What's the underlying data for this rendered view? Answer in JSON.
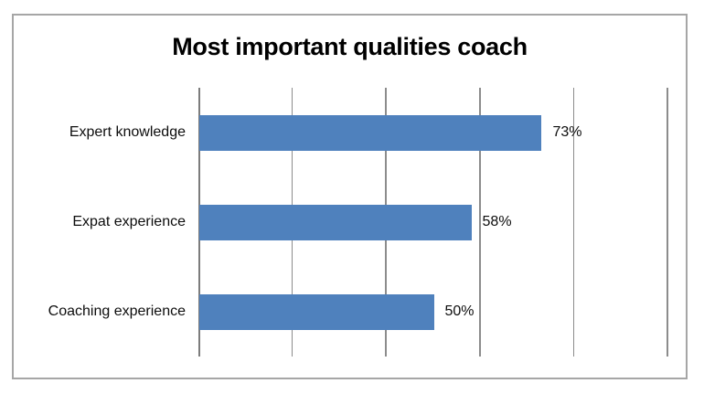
{
  "chart_data": {
    "type": "bar",
    "orientation": "horizontal",
    "title": "Most important qualities coach",
    "categories": [
      "Expert knowledge",
      "Expat experience",
      "Coaching experience"
    ],
    "values": [
      73,
      58,
      50
    ],
    "data_labels": [
      "73%",
      "58%",
      "50%"
    ],
    "xlabel": "",
    "ylabel": "",
    "xlim": [
      0,
      100
    ],
    "gridline_interval": 20,
    "grid": true,
    "legend": false,
    "bar_color": "#4f81bd",
    "gridline_color": "#8c8c8c",
    "frame_border_color": "#a6a6a6",
    "title_color": "#000000",
    "label_color": "#0d0d0d"
  }
}
